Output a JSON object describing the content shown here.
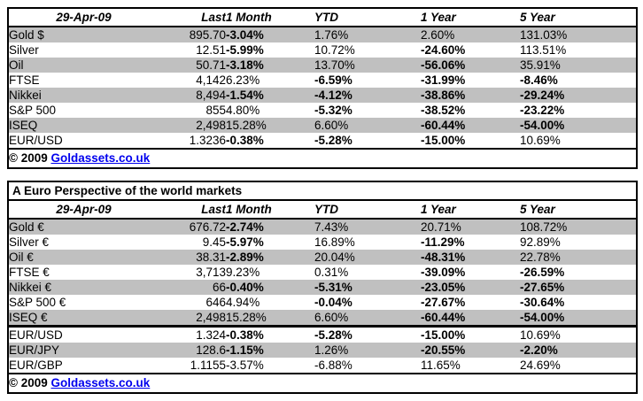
{
  "colors": {
    "negative_red": "#FF0000",
    "band_gray": "#C0C0C0",
    "link_blue": "#0000EE",
    "table_border": "#000000"
  },
  "usd_table": {
    "date_header": "29-Apr-09",
    "columns": [
      "Last",
      "1 Month",
      "YTD",
      "1 Year",
      "5 Year"
    ],
    "rows": [
      {
        "name": "Gold $",
        "last": "895.70",
        "shade": true,
        "pcts": [
          {
            "t": "-3.04%",
            "red": true
          },
          {
            "t": "1.76%",
            "red": false
          },
          {
            "t": "2.60%",
            "red": false
          },
          {
            "t": "131.03%",
            "red": false
          }
        ]
      },
      {
        "name": "Silver",
        "last": "12.51",
        "shade": false,
        "pcts": [
          {
            "t": "-5.99%",
            "red": true
          },
          {
            "t": "10.72%",
            "red": false
          },
          {
            "t": "-24.60%",
            "red": true
          },
          {
            "t": "113.51%",
            "red": false
          }
        ]
      },
      {
        "name": "Oil",
        "last": "50.71",
        "shade": true,
        "pcts": [
          {
            "t": "-3.18%",
            "red": true
          },
          {
            "t": "13.70%",
            "red": false
          },
          {
            "t": "-56.06%",
            "red": true
          },
          {
            "t": "35.91%",
            "red": false
          }
        ]
      },
      {
        "name": "FTSE",
        "last": "4,142",
        "shade": false,
        "pcts": [
          {
            "t": "6.23%",
            "red": false
          },
          {
            "t": "-6.59%",
            "red": true
          },
          {
            "t": "-31.99%",
            "red": true
          },
          {
            "t": "-8.46%",
            "red": true
          }
        ]
      },
      {
        "name": "Nikkei",
        "last": "8,494",
        "shade": true,
        "pcts": [
          {
            "t": "-1.54%",
            "red": true
          },
          {
            "t": "-4.12%",
            "red": true
          },
          {
            "t": "-38.86%",
            "red": true
          },
          {
            "t": "-29.24%",
            "red": true
          }
        ]
      },
      {
        "name": "S&P 500",
        "last": "855",
        "shade": false,
        "pcts": [
          {
            "t": "4.80%",
            "red": false
          },
          {
            "t": "-5.32%",
            "red": true
          },
          {
            "t": "-38.52%",
            "red": true
          },
          {
            "t": "-23.22%",
            "red": true
          }
        ]
      },
      {
        "name": "ISEQ",
        "last": "2,498",
        "shade": true,
        "pcts": [
          {
            "t": "15.28%",
            "red": false
          },
          {
            "t": "6.60%",
            "red": false
          },
          {
            "t": "-60.44%",
            "red": true
          },
          {
            "t": "-54.00%",
            "red": true
          }
        ]
      },
      {
        "name": "EUR/USD",
        "last": "1.3236",
        "shade": false,
        "pcts": [
          {
            "t": "-0.38%",
            "red": true
          },
          {
            "t": "-5.28%",
            "red": true
          },
          {
            "t": "-15.00%",
            "red": true
          },
          {
            "t": "10.69%",
            "red": false
          }
        ]
      }
    ],
    "footer": {
      "copyright": "© 2009",
      "link_label": "Goldassets.co.uk"
    }
  },
  "euro_table": {
    "title": "A Euro Perspective of the world markets",
    "date_header": "29-Apr-09",
    "columns": [
      "Last",
      "1 Month",
      "YTD",
      "1 Year",
      "5 Year"
    ],
    "rows_main": [
      {
        "name": "Gold €",
        "last": "676.72",
        "shade": true,
        "pcts": [
          {
            "t": "-2.74%",
            "red": true
          },
          {
            "t": "7.43%",
            "red": false
          },
          {
            "t": "20.71%",
            "red": false
          },
          {
            "t": "108.72%",
            "red": false
          }
        ]
      },
      {
        "name": "Silver €",
        "last": "9.45",
        "shade": false,
        "pcts": [
          {
            "t": "-5.97%",
            "red": true
          },
          {
            "t": "16.89%",
            "red": false
          },
          {
            "t": "-11.29%",
            "red": true
          },
          {
            "t": "92.89%",
            "red": false
          }
        ]
      },
      {
        "name": "Oil €",
        "last": "38.31",
        "shade": true,
        "pcts": [
          {
            "t": "-2.89%",
            "red": true
          },
          {
            "t": "20.04%",
            "red": false
          },
          {
            "t": "-48.31%",
            "red": true
          },
          {
            "t": "22.78%",
            "red": false
          }
        ]
      },
      {
        "name": "FTSE €",
        "last": "3,713",
        "shade": false,
        "pcts": [
          {
            "t": "9.23%",
            "red": false
          },
          {
            "t": "0.31%",
            "red": false
          },
          {
            "t": "-39.09%",
            "red": true
          },
          {
            "t": "-26.59%",
            "red": true
          }
        ]
      },
      {
        "name": "Nikkei €",
        "last": "66",
        "shade": true,
        "pcts": [
          {
            "t": "-0.40%",
            "red": true
          },
          {
            "t": "-5.31%",
            "red": true
          },
          {
            "t": "-23.05%",
            "red": true
          },
          {
            "t": "-27.65%",
            "red": true
          }
        ]
      },
      {
        "name": "S&P 500 €",
        "last": "646",
        "shade": false,
        "pcts": [
          {
            "t": "4.94%",
            "red": false
          },
          {
            "t": "-0.04%",
            "red": true
          },
          {
            "t": "-27.67%",
            "red": true
          },
          {
            "t": "-30.64%",
            "red": true
          }
        ]
      },
      {
        "name": "ISEQ €",
        "last": "2,498",
        "shade": true,
        "pcts": [
          {
            "t": "15.28%",
            "red": false
          },
          {
            "t": "6.60%",
            "red": false
          },
          {
            "t": "-60.44%",
            "red": true
          },
          {
            "t": "-54.00%",
            "red": true
          }
        ]
      }
    ],
    "rows_fx": [
      {
        "name": "EUR/USD",
        "last": "1.324",
        "shade": false,
        "pcts": [
          {
            "t": "-0.38%",
            "red": true
          },
          {
            "t": "-5.28%",
            "red": true
          },
          {
            "t": "-15.00%",
            "red": true
          },
          {
            "t": "10.69%",
            "red": false
          }
        ]
      },
      {
        "name": "EUR/JPY",
        "last": "128.6",
        "shade": true,
        "pcts": [
          {
            "t": "-1.15%",
            "red": true
          },
          {
            "t": "1.26%",
            "red": false
          },
          {
            "t": "-20.55%",
            "red": true
          },
          {
            "t": "-2.20%",
            "red": true
          }
        ]
      },
      {
        "name": "EUR/GBP",
        "last": "1.1155",
        "shade": false,
        "pcts": [
          {
            "t": "-3.57%",
            "red": false
          },
          {
            "t": "-6.88%",
            "red": false
          },
          {
            "t": "11.65%",
            "red": false
          },
          {
            "t": "24.69%",
            "red": false
          }
        ]
      }
    ],
    "footer": {
      "copyright": "© 2009",
      "link_label": "Goldassets.co.uk"
    }
  }
}
